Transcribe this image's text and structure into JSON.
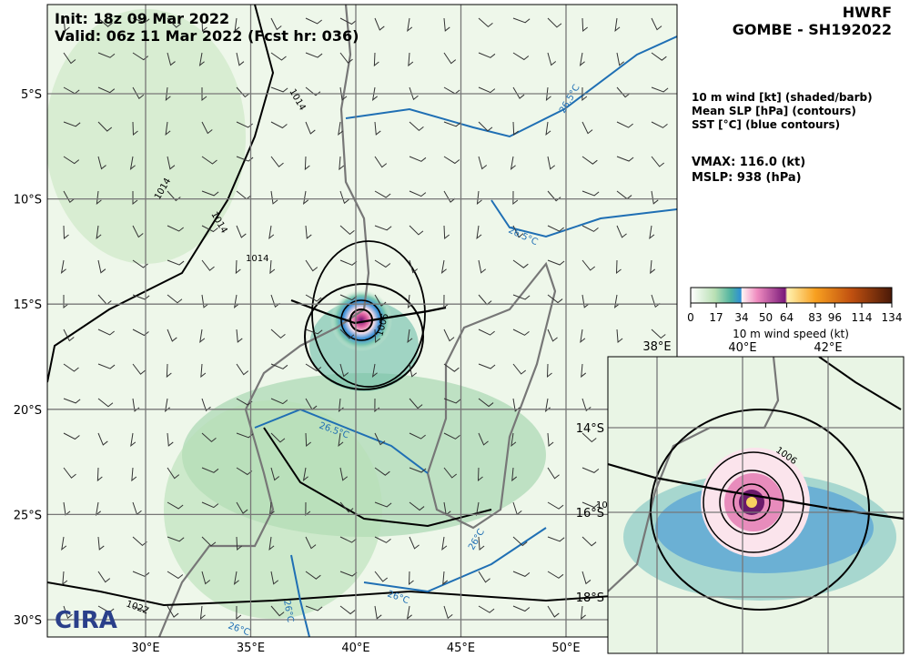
{
  "header": {
    "init": "Init:   18z 09 Mar 2022",
    "valid": "Valid: 06z 11 Mar 2022 (Fcst hr: 036)",
    "model": "HWRF",
    "storm": "GOMBE - SH192022"
  },
  "legend_info": {
    "fields": [
      "10 m wind [kt] (shaded/barb)",
      "Mean SLP [hPa] (contours)",
      "SST [°C] (blue contours)"
    ],
    "vmax": "VMAX: 116.0 (kt)",
    "mslp": "MSLP:  938 (hPa)"
  },
  "colorbar": {
    "ticks": [
      0,
      17,
      34,
      50,
      64,
      83,
      96,
      114,
      134
    ],
    "range": [
      0,
      134
    ],
    "label": "10 m wind speed (kt)"
  },
  "main_map": {
    "lon_ticks": [
      {
        "value": 30,
        "label": "30°E"
      },
      {
        "value": 35,
        "label": "35°E"
      },
      {
        "value": 40,
        "label": "40°E"
      },
      {
        "value": 45,
        "label": "45°E"
      },
      {
        "value": 50,
        "label": "50°E"
      }
    ],
    "lat_ticks": [
      {
        "value": -5,
        "label": "5°S"
      },
      {
        "value": -10,
        "label": "10°S"
      },
      {
        "value": -15,
        "label": "15°S"
      },
      {
        "value": -20,
        "label": "20°S"
      },
      {
        "value": -25,
        "label": "25°S"
      },
      {
        "value": -30,
        "label": "30°S"
      }
    ],
    "contour_labels": [
      "1014",
      "1014",
      "1014",
      "1014",
      "1006",
      "1022",
      "26.5°C",
      "26.5°C",
      "26.5°C",
      "26°C",
      "26°C",
      "26°C",
      "26°C"
    ]
  },
  "inset_map": {
    "lon_ticks": [
      {
        "value": 38,
        "label": "38°E"
      },
      {
        "value": 40,
        "label": "40°E"
      },
      {
        "value": 42,
        "label": "42°E"
      }
    ],
    "lat_ticks": [
      {
        "value": -14,
        "label": "14°S"
      },
      {
        "value": -16,
        "label": "16°S"
      },
      {
        "value": -18,
        "label": "18°S"
      }
    ],
    "contour_labels": [
      "1006",
      "10"
    ]
  },
  "logo": "CIRA"
}
